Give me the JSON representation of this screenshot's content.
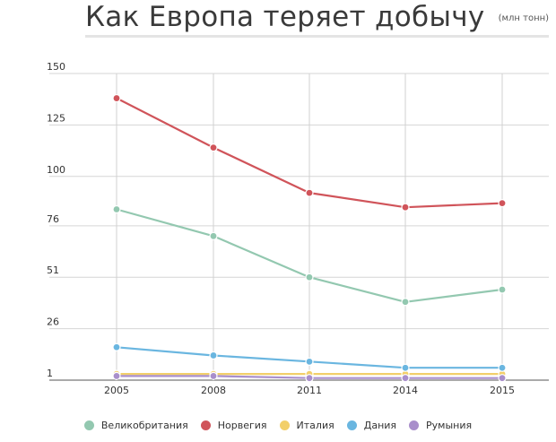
{
  "header": {
    "title": "Как Европа теряет добычу",
    "subtitle": "(млн тонн)"
  },
  "chart_data": {
    "type": "line",
    "title": "Как Европа теряет добычу",
    "subtitle": "(млн тонн)",
    "xlabel": "",
    "ylabel": "",
    "categories": [
      "2005",
      "2008",
      "2011",
      "2014",
      "2015"
    ],
    "y_ticks": [
      "150",
      "125",
      "100",
      "76",
      "51",
      "26",
      "1"
    ],
    "y_tick_values": [
      150,
      125,
      100,
      76,
      51,
      26,
      1
    ],
    "ylim": [
      1,
      150
    ],
    "grid": "vertical and horizontal",
    "legend_position": "bottom",
    "series": [
      {
        "name": "Великобритания",
        "color": "#93c8b0",
        "values": [
          84,
          71,
          51,
          39,
          45
        ]
      },
      {
        "name": "Норвегия",
        "color": "#d0545a",
        "values": [
          138,
          114,
          92,
          85,
          87
        ]
      },
      {
        "name": "Италия",
        "color": "#f2cf6a",
        "values": [
          4,
          4,
          4,
          4,
          4
        ]
      },
      {
        "name": "Дания",
        "color": "#6ab6e0",
        "values": [
          17,
          13,
          10,
          7,
          7
        ]
      },
      {
        "name": "Румыния",
        "color": "#a98fcb",
        "values": [
          3,
          3,
          2,
          2,
          2
        ]
      }
    ]
  }
}
